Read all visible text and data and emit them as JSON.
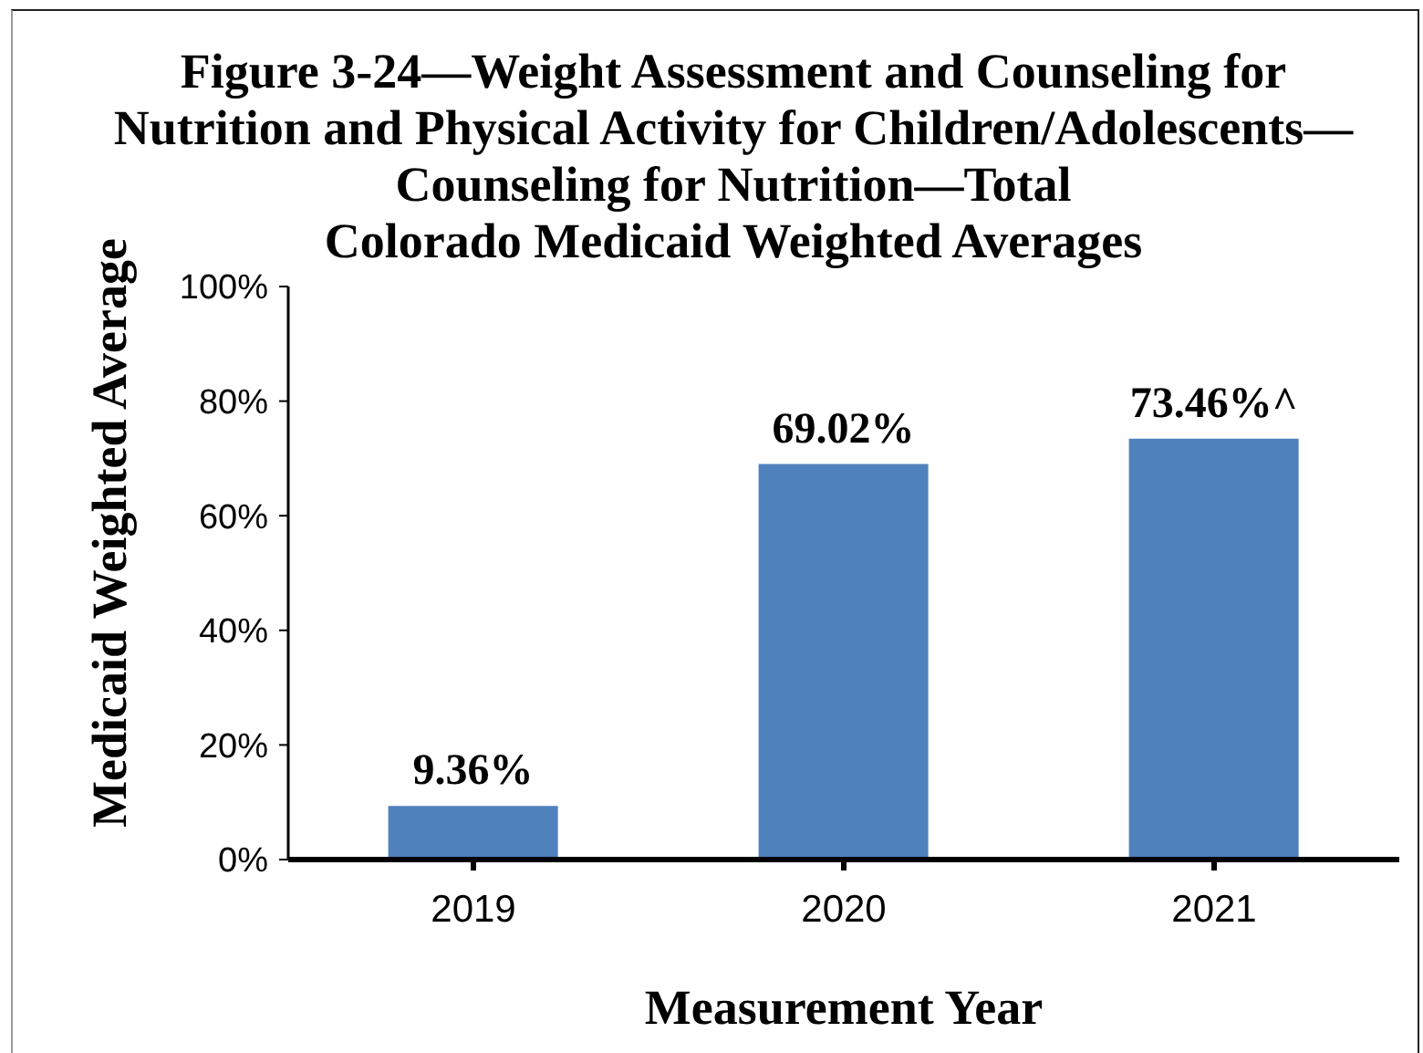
{
  "chart_data": {
    "type": "bar",
    "title": "Figure 3-24—Weight Assessment and Counseling for\nNutrition and Physical Activity for Children/Adolescents—\nCounseling for Nutrition—Total\nColorado Medicaid Weighted Averages",
    "xlabel": "Measurement Year",
    "ylabel": "Medicaid Weighted Average",
    "categories": [
      "2019",
      "2020",
      "2021"
    ],
    "values": [
      9.36,
      69.02,
      73.46
    ],
    "value_labels": [
      "9.36%",
      "69.02%",
      "73.46%^"
    ],
    "color": "#4f81bd",
    "ylim": [
      0,
      100
    ],
    "yticks": [
      {
        "value": 0,
        "label": "0%"
      },
      {
        "value": 20,
        "label": "20%"
      },
      {
        "value": 40,
        "label": "40%"
      },
      {
        "value": 60,
        "label": "60%"
      },
      {
        "value": 80,
        "label": "80%"
      },
      {
        "value": 100,
        "label": "100%"
      }
    ]
  }
}
